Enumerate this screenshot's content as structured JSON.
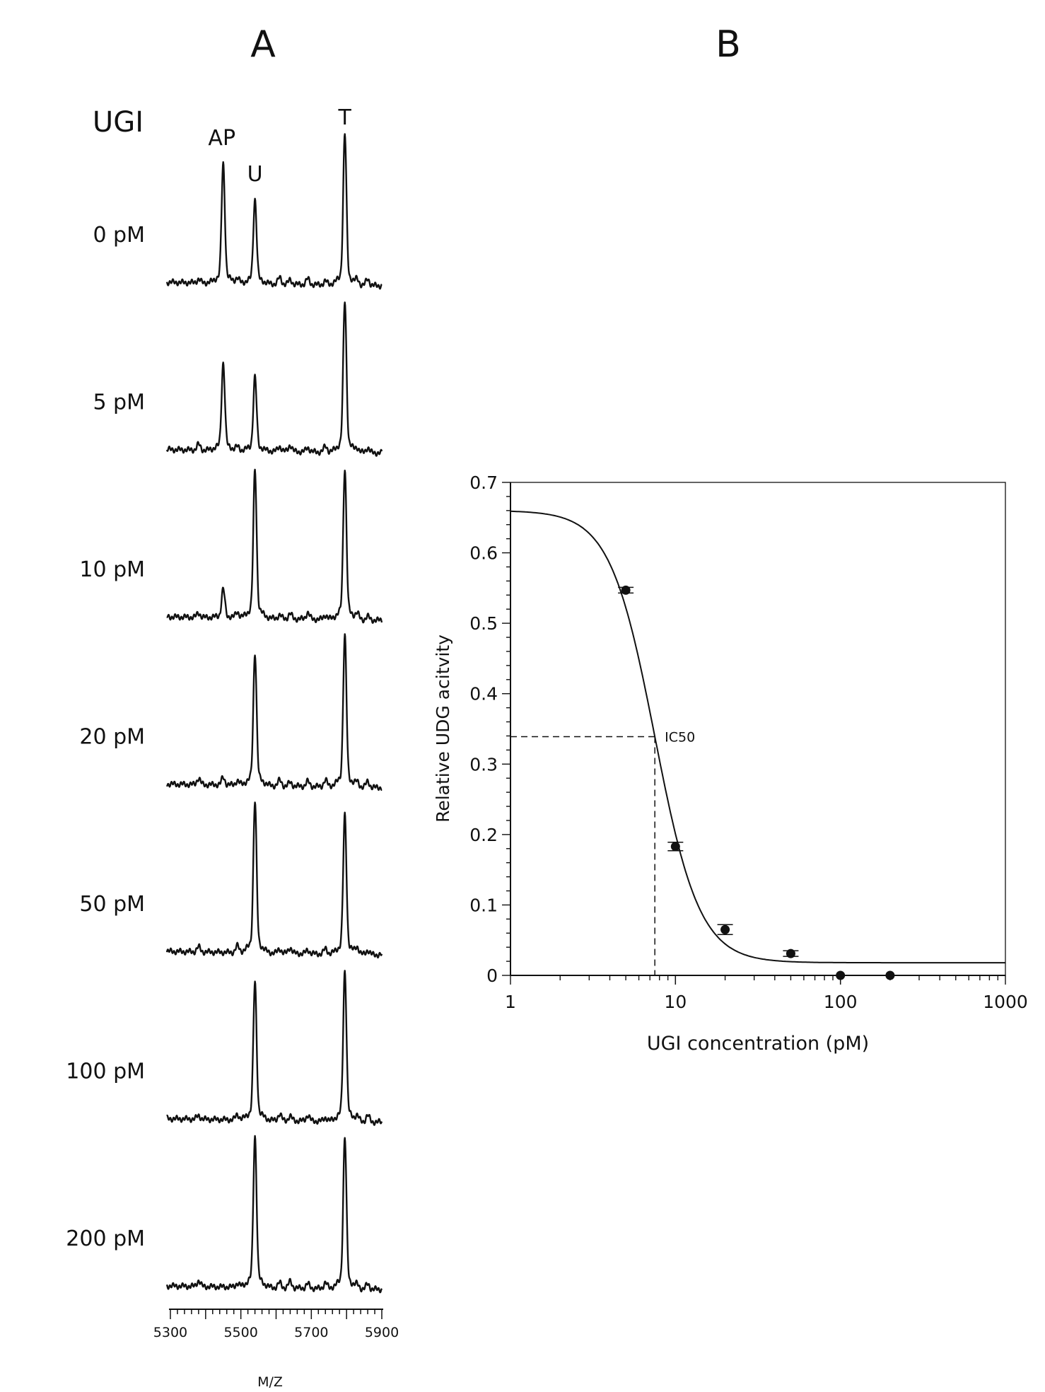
{
  "panels": {
    "a_label": "A",
    "b_label": "B"
  },
  "chart_data": [
    {
      "type": "line",
      "panel": "A",
      "title": "",
      "header": "UGI",
      "peak_labels": [
        {
          "label": "AP",
          "mz": 5450
        },
        {
          "label": "U",
          "mz": 5540
        },
        {
          "label": "T",
          "mz": 5795
        }
      ],
      "xlabel": "M/Z",
      "xlim": [
        5290,
        5900
      ],
      "x_ticks": [
        5300,
        5400,
        5500,
        5600,
        5700,
        5800,
        5900
      ],
      "x_tick_labels": [
        "5300",
        "5500",
        "5700",
        "5900"
      ],
      "series": [
        {
          "name": "0 pM",
          "peaks": {
            "AP": 0.79,
            "U": 0.56,
            "T": 1.0
          }
        },
        {
          "name": "5 pM",
          "peaks": {
            "AP": 0.58,
            "U": 0.49,
            "T": 1.0
          }
        },
        {
          "name": "10 pM",
          "peaks": {
            "AP": 0.19,
            "U": 0.98,
            "T": 1.0
          }
        },
        {
          "name": "20 pM",
          "peaks": {
            "AP": 0.05,
            "U": 0.88,
            "T": 1.0
          }
        },
        {
          "name": "50 pM",
          "peaks": {
            "AP": 0.0,
            "U": 1.0,
            "T": 0.92
          }
        },
        {
          "name": "100 pM",
          "peaks": {
            "AP": 0.0,
            "U": 0.91,
            "T": 1.0
          }
        },
        {
          "name": "200 pM",
          "peaks": {
            "AP": 0.0,
            "U": 1.0,
            "T": 1.0
          }
        }
      ]
    },
    {
      "type": "scatter",
      "panel": "B",
      "title": "",
      "xlabel": "UGI concentration (pM)",
      "ylabel": "Relative UDG acitvity",
      "x_scale": "log",
      "xlim": [
        1,
        1000
      ],
      "ylim": [
        0,
        0.7
      ],
      "x_tick_labels": [
        "1",
        "10",
        "100",
        "1000"
      ],
      "y_tick_labels": [
        "0",
        "0.1",
        "0.2",
        "0.3",
        "0.4",
        "0.5",
        "0.6",
        "0.7"
      ],
      "points": [
        {
          "x": 5,
          "y": 0.547,
          "err": 0.004
        },
        {
          "x": 10,
          "y": 0.183,
          "err": 0.006
        },
        {
          "x": 20,
          "y": 0.065,
          "err": 0.007
        },
        {
          "x": 50,
          "y": 0.031,
          "err": 0.004
        },
        {
          "x": 100,
          "y": 0.0,
          "err": 0.0
        },
        {
          "x": 200,
          "y": 0.0,
          "err": 0.0
        }
      ],
      "fit": {
        "top": 0.66,
        "bottom": 0.018,
        "ic50": 7.5,
        "hill": 3.2
      },
      "annotation": {
        "label": "IC50",
        "x": 7.5,
        "y": 0.339
      }
    }
  ]
}
